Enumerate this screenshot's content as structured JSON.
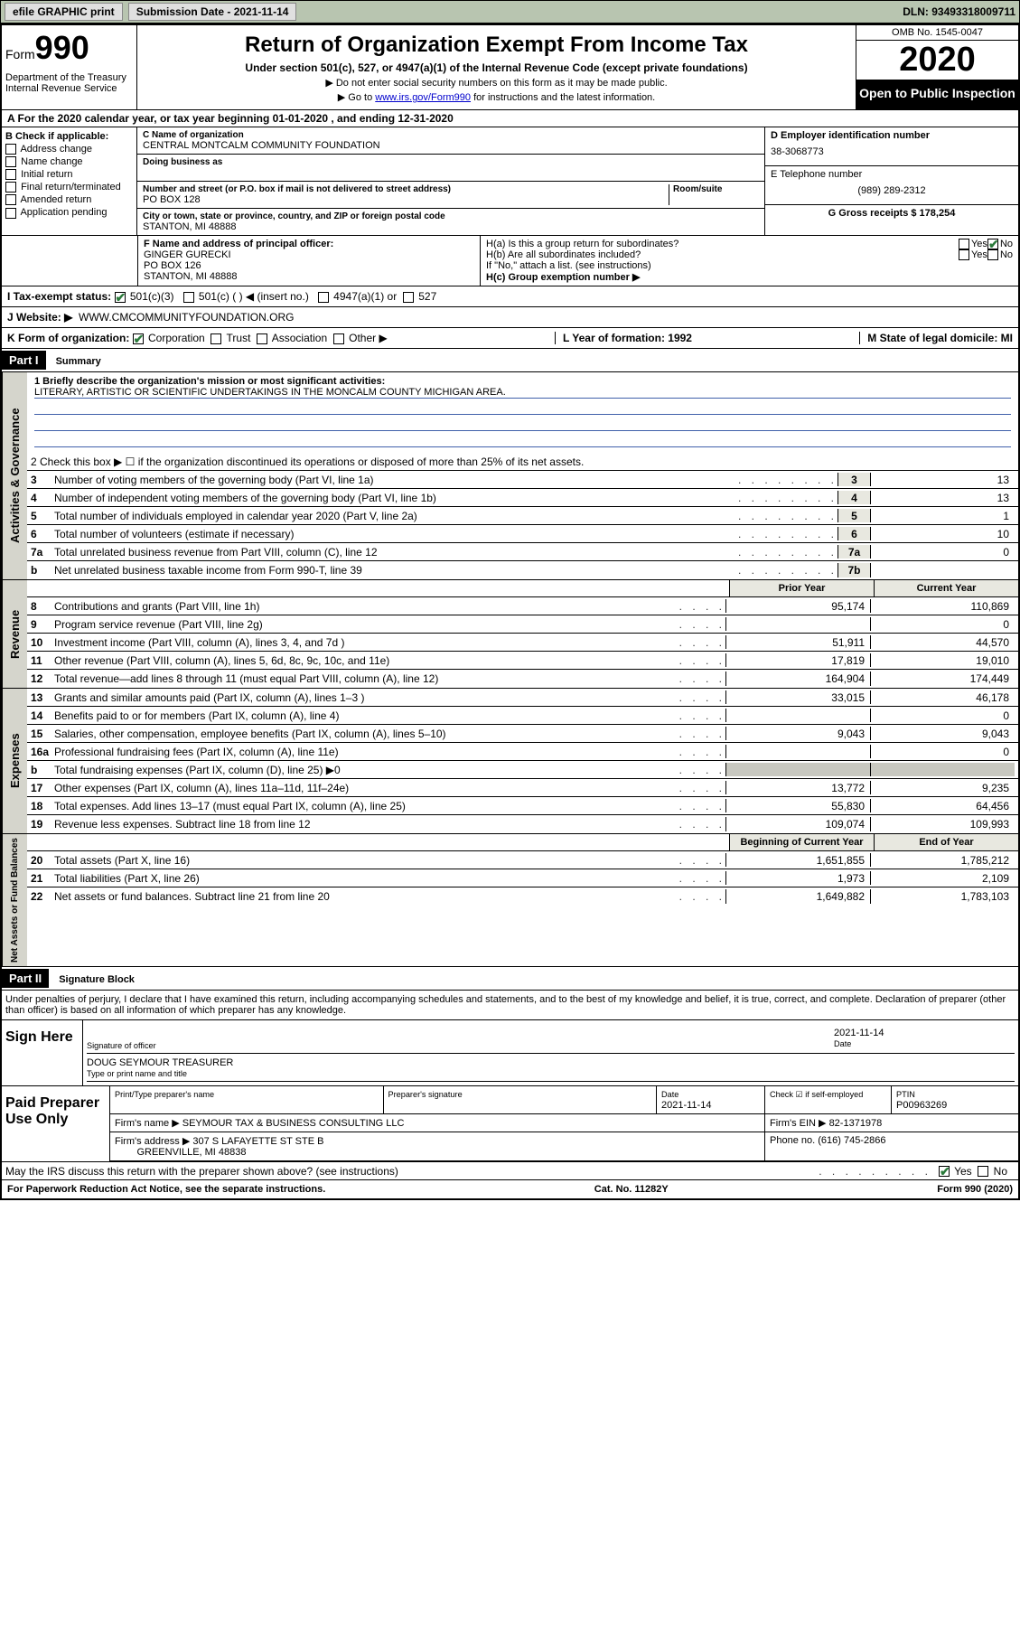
{
  "topbar": {
    "efile": "efile GRAPHIC print",
    "submission_label": "Submission Date - 2021-11-14",
    "dln": "DLN: 93493318009711"
  },
  "header": {
    "form_label": "Form",
    "form_number": "990",
    "dept": "Department of the Treasury\nInternal Revenue Service",
    "title": "Return of Organization Exempt From Income Tax",
    "subtitle": "Under section 501(c), 527, or 4947(a)(1) of the Internal Revenue Code (except private foundations)",
    "note1": "▶ Do not enter social security numbers on this form as it may be made public.",
    "note2_pre": "▶ Go to ",
    "note2_link": "www.irs.gov/Form990",
    "note2_post": " for instructions and the latest information.",
    "omb": "OMB No. 1545-0047",
    "year": "2020",
    "inspect": "Open to Public Inspection"
  },
  "row_a": "A For the 2020 calendar year, or tax year beginning 01-01-2020     , and ending 12-31-2020",
  "section_b": {
    "check_label": "B Check if applicable:",
    "checks": [
      "Address change",
      "Name change",
      "Initial return",
      "Final return/terminated",
      "Amended return",
      "Application pending"
    ],
    "c_name_label": "C Name of organization",
    "c_name": "CENTRAL MONTCALM COMMUNITY FOUNDATION",
    "dba_label": "Doing business as",
    "street_label": "Number and street (or P.O. box if mail is not delivered to street address)",
    "room_label": "Room/suite",
    "street": "PO BOX 128",
    "city_label": "City or town, state or province, country, and ZIP or foreign postal code",
    "city": "STANTON, MI  48888",
    "d_label": "D Employer identification number",
    "d_value": "38-3068773",
    "e_label": "E Telephone number",
    "e_value": "(989) 289-2312",
    "g_label": "G Gross receipts $ 178,254"
  },
  "officer": {
    "f_label": "F  Name and address of principal officer:",
    "name": "GINGER GURECKI",
    "addr1": "PO BOX 126",
    "addr2": "STANTON, MI  48888",
    "ha_label": "H(a)  Is this a group return for subordinates?",
    "ha_no": "No",
    "hb_label": "H(b)  Are all subordinates included?",
    "hb_note": "If \"No,\" attach a list. (see instructions)",
    "hc_label": "H(c)  Group exemption number ▶"
  },
  "tax_status": {
    "label": "I   Tax-exempt status:",
    "opt1": "501(c)(3)",
    "opt2": "501(c) (   ) ◀ (insert no.)",
    "opt3": "4947(a)(1) or",
    "opt4": "527"
  },
  "website": {
    "label": "J   Website: ▶",
    "value": "WWW.CMCOMMUNITYFOUNDATION.ORG"
  },
  "korg": {
    "k_label": "K Form of organization:",
    "opts": [
      "Corporation",
      "Trust",
      "Association",
      "Other ▶"
    ],
    "l_label": "L Year of formation: 1992",
    "m_label": "M State of legal domicile: MI"
  },
  "part1": {
    "header": "Part I",
    "title": "Summary",
    "section_labels": {
      "gov": "Activities & Governance",
      "rev": "Revenue",
      "exp": "Expenses",
      "net": "Net Assets or Fund Balances"
    },
    "mission_label": "1   Briefly describe the organization's mission or most significant activities:",
    "mission": "LITERARY, ARTISTIC OR SCIENTIFIC UNDERTAKINGS IN THE MONCALM COUNTY MICHIGAN AREA.",
    "line2": "2     Check this box ▶ ☐  if the organization discontinued its operations or disposed of more than 25% of its net assets.",
    "gov_lines": [
      {
        "num": "3",
        "desc": "Number of voting members of the governing body (Part VI, line 1a)",
        "box": "3",
        "val": "13"
      },
      {
        "num": "4",
        "desc": "Number of independent voting members of the governing body (Part VI, line 1b)",
        "box": "4",
        "val": "13"
      },
      {
        "num": "5",
        "desc": "Total number of individuals employed in calendar year 2020 (Part V, line 2a)",
        "box": "5",
        "val": "1"
      },
      {
        "num": "6",
        "desc": "Total number of volunteers (estimate if necessary)",
        "box": "6",
        "val": "10"
      },
      {
        "num": "7a",
        "desc": "Total unrelated business revenue from Part VIII, column (C), line 12",
        "box": "7a",
        "val": "0"
      },
      {
        "num": "b",
        "desc": "Net unrelated business taxable income from Form 990-T, line 39",
        "box": "7b",
        "val": ""
      }
    ],
    "col_headers": {
      "prior": "Prior Year",
      "current": "Current Year",
      "begin": "Beginning of Current Year",
      "end": "End of Year"
    },
    "rev_lines": [
      {
        "num": "8",
        "desc": "Contributions and grants (Part VIII, line 1h)",
        "prior": "95,174",
        "current": "110,869"
      },
      {
        "num": "9",
        "desc": "Program service revenue (Part VIII, line 2g)",
        "prior": "",
        "current": "0"
      },
      {
        "num": "10",
        "desc": "Investment income (Part VIII, column (A), lines 3, 4, and 7d )",
        "prior": "51,911",
        "current": "44,570"
      },
      {
        "num": "11",
        "desc": "Other revenue (Part VIII, column (A), lines 5, 6d, 8c, 9c, 10c, and 11e)",
        "prior": "17,819",
        "current": "19,010"
      },
      {
        "num": "12",
        "desc": "Total revenue—add lines 8 through 11 (must equal Part VIII, column (A), line 12)",
        "prior": "164,904",
        "current": "174,449"
      }
    ],
    "exp_lines": [
      {
        "num": "13",
        "desc": "Grants and similar amounts paid (Part IX, column (A), lines 1–3 )",
        "prior": "33,015",
        "current": "46,178"
      },
      {
        "num": "14",
        "desc": "Benefits paid to or for members (Part IX, column (A), line 4)",
        "prior": "",
        "current": "0"
      },
      {
        "num": "15",
        "desc": "Salaries, other compensation, employee benefits (Part IX, column (A), lines 5–10)",
        "prior": "9,043",
        "current": "9,043"
      },
      {
        "num": "16a",
        "desc": "Professional fundraising fees (Part IX, column (A), line 11e)",
        "prior": "",
        "current": "0"
      },
      {
        "num": "b",
        "desc": "Total fundraising expenses (Part IX, column (D), line 25) ▶0",
        "prior": "",
        "current": ""
      },
      {
        "num": "17",
        "desc": "Other expenses (Part IX, column (A), lines 11a–11d, 11f–24e)",
        "prior": "13,772",
        "current": "9,235"
      },
      {
        "num": "18",
        "desc": "Total expenses. Add lines 13–17 (must equal Part IX, column (A), line 25)",
        "prior": "55,830",
        "current": "64,456"
      },
      {
        "num": "19",
        "desc": "Revenue less expenses. Subtract line 18 from line 12",
        "prior": "109,074",
        "current": "109,993"
      }
    ],
    "net_lines": [
      {
        "num": "20",
        "desc": "Total assets (Part X, line 16)",
        "prior": "1,651,855",
        "current": "1,785,212"
      },
      {
        "num": "21",
        "desc": "Total liabilities (Part X, line 26)",
        "prior": "1,973",
        "current": "2,109"
      },
      {
        "num": "22",
        "desc": "Net assets or fund balances. Subtract line 21 from line 20",
        "prior": "1,649,882",
        "current": "1,783,103"
      }
    ]
  },
  "part2": {
    "header": "Part II",
    "title": "Signature Block",
    "perjury": "Under penalties of perjury, I declare that I have examined this return, including accompanying schedules and statements, and to the best of my knowledge and belief, it is true, correct, and complete. Declaration of preparer (other than officer) is based on all information of which preparer has any knowledge.",
    "sign_here": "Sign Here",
    "sig_officer": "Signature of officer",
    "sig_date": "2021-11-14",
    "date_label": "Date",
    "officer_name": "DOUG SEYMOUR  TREASURER",
    "type_label": "Type or print name and title",
    "paid_prep": "Paid Preparer Use Only",
    "prep_name_label": "Print/Type preparer's name",
    "prep_sig_label": "Preparer's signature",
    "prep_date_label": "Date",
    "prep_date": "2021-11-14",
    "check_self": "Check ☑ if self-employed",
    "ptin_label": "PTIN",
    "ptin": "P00963269",
    "firm_name_label": "Firm's name      ▶",
    "firm_name": "SEYMOUR TAX & BUSINESS CONSULTING LLC",
    "firm_ein_label": "Firm's EIN ▶",
    "firm_ein": "82-1371978",
    "firm_addr_label": "Firm's address ▶",
    "firm_addr1": "307 S LAFAYETTE ST STE B",
    "firm_addr2": "GREENVILLE, MI  48838",
    "phone_label": "Phone no.",
    "phone": "(616) 745-2866",
    "discuss": "May the IRS discuss this return with the preparer shown above? (see instructions)",
    "yes": "Yes",
    "no": "No"
  },
  "footer": {
    "paperwork": "For Paperwork Reduction Act Notice, see the separate instructions.",
    "cat": "Cat. No. 11282Y",
    "form": "Form 990 (2020)"
  }
}
